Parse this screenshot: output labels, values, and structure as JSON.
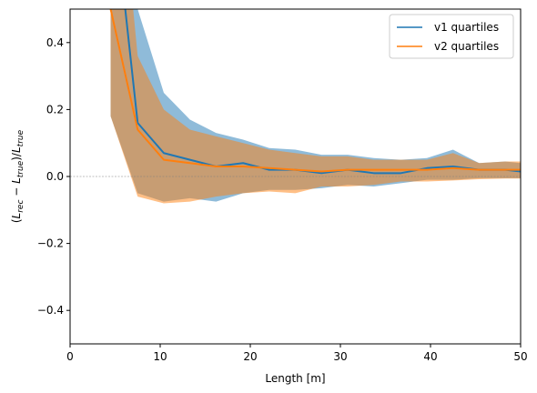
{
  "chart_data": {
    "type": "area",
    "xlabel": "Length [m]",
    "ylabel": "(L_rec − L_true)/L_true",
    "xlim": [
      0,
      50
    ],
    "ylim": [
      -0.5,
      0.5
    ],
    "xticks": [
      0,
      10,
      20,
      30,
      40,
      50
    ],
    "xtick_labels": [
      "0",
      "10",
      "20",
      "30",
      "40",
      "50"
    ],
    "yticks": [
      -0.4,
      -0.2,
      0.0,
      0.2,
      0.4
    ],
    "ytick_labels": [
      "−0.4",
      "−0.2",
      "0.0",
      "0.2",
      "0.4"
    ],
    "legend_position": "top-right",
    "zero_line": true,
    "series": [
      {
        "name": "v1 quartiles",
        "color": "#1f77b4",
        "fill_color": "#1f77b4",
        "fill_opacity": 0.5,
        "x": [
          4.5,
          7.5,
          10.4,
          13.3,
          16.2,
          19.2,
          22.1,
          25.0,
          27.9,
          30.8,
          33.7,
          36.7,
          39.6,
          42.5,
          45.4,
          48.3,
          50
        ],
        "median": [
          0.9,
          0.16,
          0.07,
          0.05,
          0.03,
          0.04,
          0.02,
          0.02,
          0.01,
          0.02,
          0.01,
          0.01,
          0.025,
          0.03,
          0.02,
          0.02,
          0.015
        ],
        "upper": [
          1.4,
          0.5,
          0.25,
          0.17,
          0.13,
          0.11,
          0.085,
          0.08,
          0.065,
          0.065,
          0.055,
          0.05,
          0.055,
          0.08,
          0.04,
          0.045,
          0.04
        ],
        "lower": [
          0.18,
          -0.05,
          -0.075,
          -0.065,
          -0.075,
          -0.05,
          -0.04,
          -0.04,
          -0.035,
          -0.025,
          -0.03,
          -0.02,
          -0.01,
          -0.01,
          -0.005,
          -0.005,
          -0.005
        ]
      },
      {
        "name": "v2 quartiles",
        "color": "#ff7f0e",
        "fill_color": "#ff7f0e",
        "fill_opacity": 0.5,
        "x": [
          4.5,
          7.5,
          10.4,
          13.3,
          16.2,
          19.2,
          22.1,
          25.0,
          27.9,
          30.8,
          33.7,
          36.7,
          39.6,
          42.5,
          45.4,
          48.3,
          50
        ],
        "median": [
          0.5,
          0.14,
          0.05,
          0.04,
          0.03,
          0.03,
          0.025,
          0.02,
          0.015,
          0.02,
          0.02,
          0.02,
          0.02,
          0.025,
          0.02,
          0.02,
          0.02
        ],
        "upper": [
          1.2,
          0.36,
          0.2,
          0.14,
          0.12,
          0.1,
          0.08,
          0.07,
          0.06,
          0.06,
          0.05,
          0.05,
          0.05,
          0.07,
          0.04,
          0.045,
          0.045
        ],
        "lower": [
          0.18,
          -0.06,
          -0.08,
          -0.075,
          -0.06,
          -0.05,
          -0.045,
          -0.05,
          -0.03,
          -0.03,
          -0.025,
          -0.015,
          -0.015,
          -0.012,
          -0.008,
          -0.006,
          -0.006
        ]
      }
    ]
  }
}
